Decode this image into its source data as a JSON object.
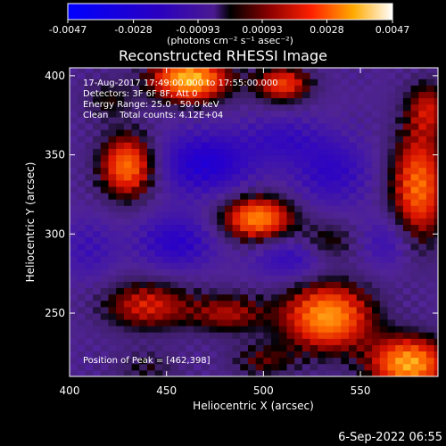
{
  "chart_data": {
    "type": "heatmap",
    "title": "Reconstructed RHESSI Image",
    "xlabel": "Heliocentric X (arcsec)",
    "ylabel": "Heliocentric Y (arcsec)",
    "xlim": [
      400,
      590
    ],
    "ylim": [
      210,
      405
    ],
    "x_ticks": [
      400,
      450,
      500,
      550
    ],
    "y_ticks": [
      250,
      300,
      350,
      400
    ],
    "x_tick_labels": [
      "400",
      "450",
      "500",
      "550"
    ],
    "y_tick_labels": [
      "250",
      "300",
      "350",
      "400"
    ],
    "colorbar": {
      "range": [
        -0.0047,
        0.0047
      ],
      "tick_values": [
        -0.0047,
        -0.0028,
        -0.00093,
        0.00093,
        0.0028,
        0.0047
      ],
      "tick_labels": [
        "-0.0047",
        "-0.0028",
        "-0.00093",
        "0.00093",
        "0.0028",
        "0.0047"
      ],
      "units_label": "(photons cm⁻² s⁻¹ asec⁻²)"
    },
    "annotations": [
      "17-Aug-2017 17:49:00.000 to 17:55:00.000",
      "Detectors: 3F 6F 8F, Att 0",
      "Energy Range: 25.0 - 50.0 keV",
      "Clean    Total counts: 4.12E+04"
    ],
    "peak_label": "Position of Peak = [462,398]",
    "peak": [
      462,
      398
    ],
    "colors": {
      "background": "#000000",
      "text": "#ffffff"
    },
    "sources": [
      {
        "x": 462,
        "y": 398,
        "amp": 0.0047,
        "sx": 14,
        "sy": 10
      },
      {
        "x": 510,
        "y": 395,
        "amp": 0.003,
        "sx": 10,
        "sy": 8
      },
      {
        "x": 430,
        "y": 343,
        "amp": 0.0038,
        "sx": 10,
        "sy": 14
      },
      {
        "x": 497,
        "y": 310,
        "amp": 0.004,
        "sx": 13,
        "sy": 10
      },
      {
        "x": 533,
        "y": 295,
        "amp": 0.0015,
        "sx": 10,
        "sy": 9
      },
      {
        "x": 440,
        "y": 255,
        "amp": 0.0025,
        "sx": 16,
        "sy": 11
      },
      {
        "x": 482,
        "y": 250,
        "amp": 0.002,
        "sx": 14,
        "sy": 9
      },
      {
        "x": 533,
        "y": 248,
        "amp": 0.0042,
        "sx": 16,
        "sy": 15
      },
      {
        "x": 575,
        "y": 218,
        "amp": 0.0044,
        "sx": 14,
        "sy": 12
      },
      {
        "x": 580,
        "y": 330,
        "amp": 0.0036,
        "sx": 10,
        "sy": 25
      },
      {
        "x": 585,
        "y": 380,
        "amp": 0.002,
        "sx": 8,
        "sy": 12
      },
      {
        "x": 420,
        "y": 385,
        "amp": 0.0012,
        "sx": 9,
        "sy": 9
      },
      {
        "x": 440,
        "y": 215,
        "amp": 0.001,
        "sx": 12,
        "sy": 8
      },
      {
        "x": 500,
        "y": 220,
        "amp": 0.0014,
        "sx": 12,
        "sy": 8
      }
    ],
    "negatives": [
      {
        "x": 470,
        "y": 345,
        "amp": -0.0022,
        "sx": 18,
        "sy": 14
      },
      {
        "x": 535,
        "y": 340,
        "amp": -0.0016,
        "sx": 14,
        "sy": 15
      },
      {
        "x": 455,
        "y": 295,
        "amp": -0.0018,
        "sx": 14,
        "sy": 12
      },
      {
        "x": 515,
        "y": 285,
        "amp": -0.0015,
        "sx": 14,
        "sy": 10
      },
      {
        "x": 565,
        "y": 295,
        "amp": -0.0012,
        "sx": 10,
        "sy": 12
      },
      {
        "x": 410,
        "y": 290,
        "amp": -0.001,
        "sx": 10,
        "sy": 14
      },
      {
        "x": 510,
        "y": 360,
        "amp": -0.0012,
        "sx": 14,
        "sy": 10
      }
    ]
  },
  "footer": {
    "date": "6-Sep-2022 06:55"
  }
}
